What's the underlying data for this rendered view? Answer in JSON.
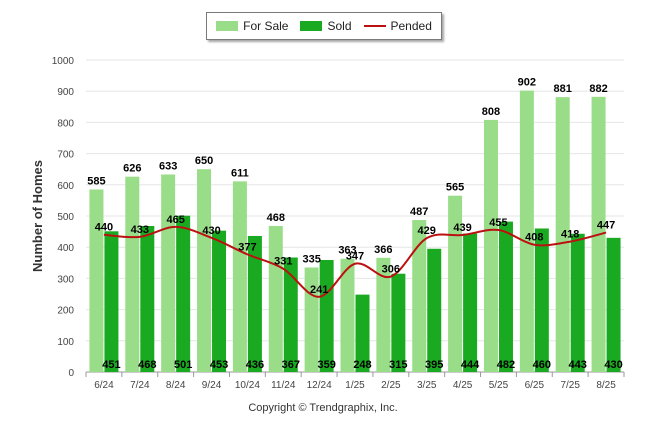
{
  "chart_data": {
    "type": "bar",
    "ylabel": "Number of Homes",
    "ylim": [
      0,
      1000
    ],
    "yticks": [
      0,
      100,
      200,
      300,
      400,
      500,
      600,
      700,
      800,
      900,
      1000
    ],
    "grid": true,
    "categories": [
      "6/24",
      "7/24",
      "8/24",
      "9/24",
      "10/24",
      "11/24",
      "12/24",
      "1/25",
      "2/25",
      "3/25",
      "4/25",
      "5/25",
      "6/25",
      "7/25",
      "8/25"
    ],
    "series": [
      {
        "name": "For Sale",
        "type": "bar",
        "color": "#99dd88",
        "values": [
          585,
          626,
          633,
          650,
          611,
          468,
          335,
          363,
          366,
          487,
          565,
          808,
          902,
          881,
          882
        ]
      },
      {
        "name": "Sold",
        "type": "bar",
        "color": "#1aaa22",
        "values": [
          451,
          468,
          501,
          453,
          436,
          367,
          359,
          248,
          315,
          395,
          444,
          482,
          460,
          443,
          430
        ]
      },
      {
        "name": "Pended",
        "type": "line",
        "color": "#bb1111",
        "values": [
          440,
          433,
          465,
          430,
          377,
          331,
          241,
          347,
          306,
          429,
          439,
          455,
          408,
          418,
          447
        ]
      }
    ],
    "legend_position": "top-center"
  },
  "footer": "Copyright © Trendgraphix, Inc."
}
